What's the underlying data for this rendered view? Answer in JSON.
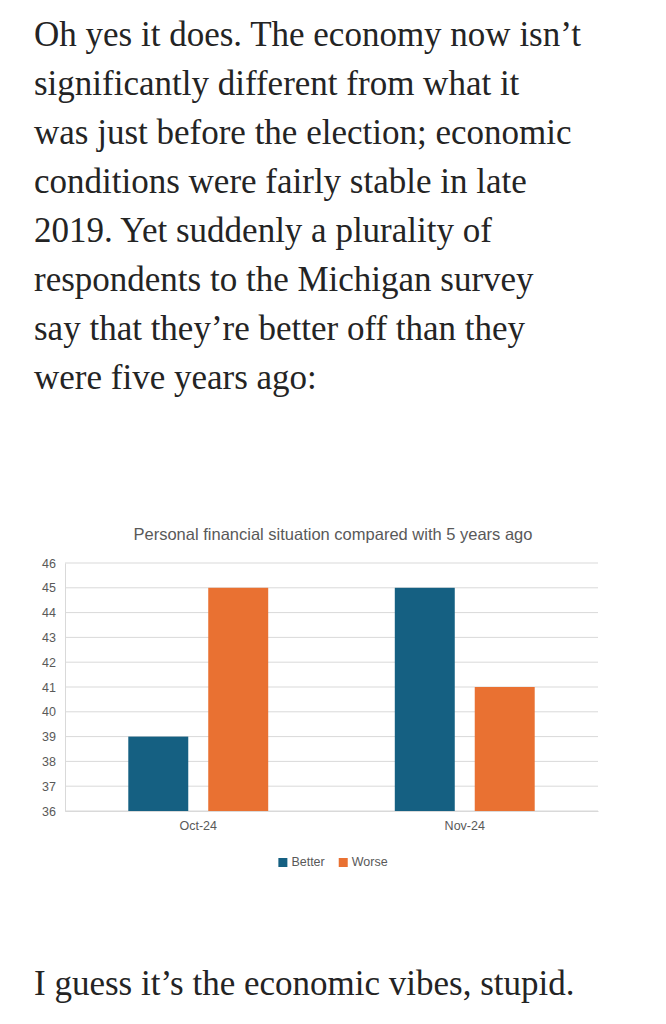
{
  "text_before": [
    "Oh yes it does. The economy now isn’t",
    "significantly different from what it",
    "was just before the election; economic",
    "conditions were fairly stable in late",
    "2019. Yet suddenly a plurality of",
    "respondents to the Michigan survey",
    "say that they’re better off than they",
    "were five years ago:"
  ],
  "chart_data": {
    "type": "bar",
    "title": "Personal financial situation compared with 5 years ago",
    "categories": [
      "Oct-24",
      "Nov-24"
    ],
    "series": [
      {
        "name": "Better",
        "color": "#156082",
        "values": [
          39,
          45
        ]
      },
      {
        "name": "Worse",
        "color": "#e97132",
        "values": [
          45,
          41
        ]
      }
    ],
    "ylim": [
      36,
      46
    ],
    "yticks": [
      36,
      37,
      38,
      39,
      40,
      41,
      42,
      43,
      44,
      45,
      46
    ],
    "grid": true,
    "legend": "bottom"
  },
  "text_after": [
    "I guess it’s the economic vibes, stupid."
  ]
}
